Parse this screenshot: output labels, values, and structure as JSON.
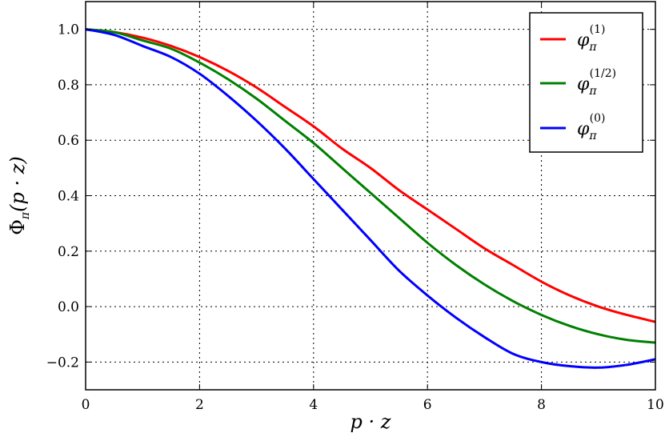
{
  "chart_data": {
    "type": "line",
    "title": "",
    "xlabel": "p · z",
    "ylabel": {
      "main": "Φ",
      "sub": "π",
      "arg": "(p · z)"
    },
    "xlim": [
      0,
      10
    ],
    "ylim": [
      -0.3,
      1.1
    ],
    "xticks": [
      0,
      2,
      4,
      6,
      8,
      10
    ],
    "yticks": [
      -0.2,
      0.0,
      0.2,
      0.4,
      0.6,
      0.8,
      1.0
    ],
    "xtick_labels": [
      "0",
      "2",
      "4",
      "6",
      "8",
      "10"
    ],
    "ytick_labels": [
      "−0.2",
      "0.0",
      "0.2",
      "0.4",
      "0.6",
      "0.8",
      "1.0"
    ],
    "grid": true,
    "legend_position": "top-right",
    "x": [
      0,
      0.5,
      1,
      1.5,
      2,
      2.5,
      3,
      3.5,
      4,
      4.5,
      5,
      5.5,
      6,
      6.5,
      7,
      7.5,
      8,
      8.5,
      9,
      9.5,
      10
    ],
    "series": [
      {
        "name": "φπ(1)",
        "legend": {
          "symbol": "φ",
          "sub": "π",
          "sup": "(1)"
        },
        "color": "#ff0000",
        "values": [
          1.0,
          0.99,
          0.97,
          0.94,
          0.9,
          0.85,
          0.79,
          0.72,
          0.65,
          0.57,
          0.5,
          0.42,
          0.35,
          0.28,
          0.21,
          0.15,
          0.09,
          0.04,
          0.0,
          -0.03,
          -0.055
        ]
      },
      {
        "name": "φπ(1/2)",
        "legend": {
          "symbol": "φ",
          "sub": "π",
          "sup": "(1/2)"
        },
        "color": "#008000",
        "values": [
          1.0,
          0.99,
          0.96,
          0.93,
          0.88,
          0.82,
          0.75,
          0.67,
          0.59,
          0.5,
          0.41,
          0.32,
          0.23,
          0.15,
          0.08,
          0.02,
          -0.03,
          -0.07,
          -0.1,
          -0.12,
          -0.13
        ]
      },
      {
        "name": "φπ(0)",
        "legend": {
          "symbol": "φ",
          "sub": "π",
          "sup": "(0)"
        },
        "color": "#0000ff",
        "values": [
          1.0,
          0.98,
          0.94,
          0.9,
          0.84,
          0.76,
          0.67,
          0.57,
          0.46,
          0.35,
          0.24,
          0.13,
          0.04,
          -0.04,
          -0.11,
          -0.17,
          -0.2,
          -0.215,
          -0.22,
          -0.21,
          -0.19
        ]
      }
    ]
  }
}
